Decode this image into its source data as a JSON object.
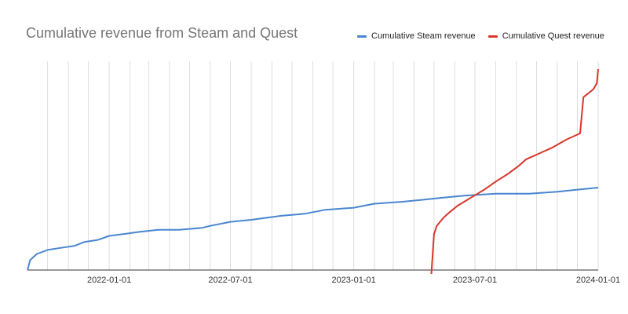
{
  "chart_data": {
    "type": "line",
    "title": "Cumulative revenue from Steam and Quest",
    "xlabel": "",
    "ylabel": "",
    "x_tick_labels": [
      "2022-01-01",
      "2022-07-01",
      "2023-01-01",
      "2023-07-01",
      "2024-01-01"
    ],
    "x_range": [
      "2021-09-01",
      "2024-01-01"
    ],
    "y_axis_labels_shown": false,
    "grid": "vertical",
    "legend_position": "top-right",
    "series": [
      {
        "name": "Cumulative Steam revenue",
        "color": "#4a86cf",
        "points": [
          [
            "2021-09-01",
            0.0
          ],
          [
            "2021-09-05",
            0.05
          ],
          [
            "2021-09-15",
            0.08
          ],
          [
            "2021-10-01",
            0.1
          ],
          [
            "2021-10-20",
            0.11
          ],
          [
            "2021-11-10",
            0.12
          ],
          [
            "2021-11-25",
            0.14
          ],
          [
            "2021-12-15",
            0.15
          ],
          [
            "2022-01-01",
            0.17
          ],
          [
            "2022-01-25",
            0.18
          ],
          [
            "2022-02-15",
            0.19
          ],
          [
            "2022-03-15",
            0.2
          ],
          [
            "2022-04-15",
            0.2
          ],
          [
            "2022-05-20",
            0.21
          ],
          [
            "2022-06-01",
            0.22
          ],
          [
            "2022-07-01",
            0.24
          ],
          [
            "2022-08-01",
            0.25
          ],
          [
            "2022-09-15",
            0.27
          ],
          [
            "2022-10-20",
            0.28
          ],
          [
            "2022-11-20",
            0.3
          ],
          [
            "2023-01-01",
            0.31
          ],
          [
            "2023-02-01",
            0.33
          ],
          [
            "2023-03-15",
            0.34
          ],
          [
            "2023-04-15",
            0.35
          ],
          [
            "2023-05-15",
            0.36
          ],
          [
            "2023-06-15",
            0.37
          ],
          [
            "2023-08-01",
            0.38
          ],
          [
            "2023-09-20",
            0.38
          ],
          [
            "2023-11-01",
            0.39
          ],
          [
            "2023-12-01",
            0.4
          ],
          [
            "2024-01-01",
            0.41
          ]
        ]
      },
      {
        "name": "Cumulative Quest revenue",
        "color": "#d9362b",
        "points": [
          [
            "2023-04-27",
            -0.02
          ],
          [
            "2023-05-01",
            0.18
          ],
          [
            "2023-05-05",
            0.22
          ],
          [
            "2023-05-15",
            0.26
          ],
          [
            "2023-05-25",
            0.29
          ],
          [
            "2023-06-05",
            0.32
          ],
          [
            "2023-06-25",
            0.36
          ],
          [
            "2023-07-15",
            0.4
          ],
          [
            "2023-08-01",
            0.44
          ],
          [
            "2023-08-20",
            0.48
          ],
          [
            "2023-09-05",
            0.52
          ],
          [
            "2023-09-15",
            0.55
          ],
          [
            "2023-10-05",
            0.58
          ],
          [
            "2023-10-25",
            0.61
          ],
          [
            "2023-11-15",
            0.65
          ],
          [
            "2023-12-05",
            0.68
          ],
          [
            "2023-12-10",
            0.86
          ],
          [
            "2023-12-25",
            0.9
          ],
          [
            "2023-12-30",
            0.93
          ],
          [
            "2024-01-01",
            1.0
          ]
        ]
      }
    ]
  }
}
